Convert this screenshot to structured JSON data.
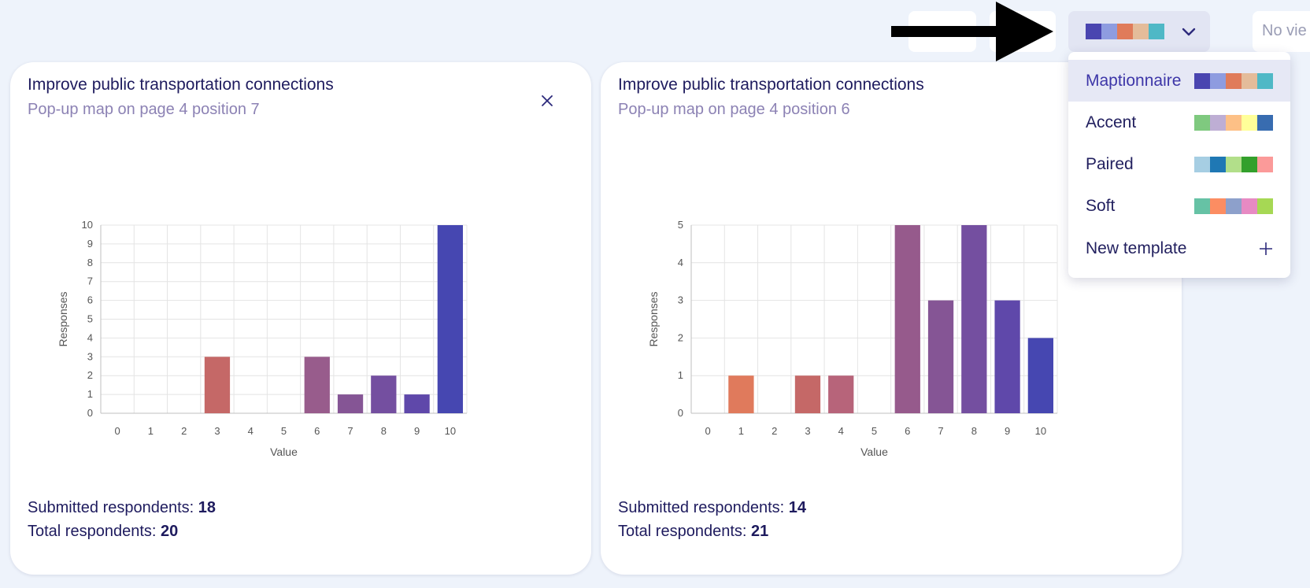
{
  "toolbar": {
    "view_button_label": "No vie",
    "palette_swatches": [
      "#4a45b0",
      "#8e9ce0",
      "#e07b5a",
      "#e4bc9a",
      "#4fb8c6"
    ]
  },
  "menu": {
    "items": [
      {
        "label": "Maptionnaire",
        "swatches": [
          "#4a45b0",
          "#8e9ce0",
          "#e07b5a",
          "#e4bc9a",
          "#4fb8c6"
        ],
        "selected": true
      },
      {
        "label": "Accent",
        "swatches": [
          "#7fc97f",
          "#beaed4",
          "#fdc086",
          "#ffff99",
          "#386cb0"
        ]
      },
      {
        "label": "Paired",
        "swatches": [
          "#a6cee3",
          "#1f78b4",
          "#b2df8a",
          "#33a02c",
          "#fb9a99"
        ]
      },
      {
        "label": "Soft",
        "swatches": [
          "#66c2a5",
          "#fc8d62",
          "#8da0cb",
          "#e78ac3",
          "#a6d854"
        ]
      }
    ],
    "new_template_label": "New template"
  },
  "cards": [
    {
      "title": "Improve public transportation connections",
      "subtitle": "Pop-up map on page 4 position 7",
      "submitted_label": "Submitted respondents: ",
      "submitted": "18",
      "total_label": "Total respondents: ",
      "total": "20"
    },
    {
      "title": "Improve public transportation connections",
      "subtitle": "Pop-up map on page 4 position 6",
      "submitted_label": "Submitted respondents: ",
      "submitted": "14",
      "total_label": "Total respondents: ",
      "total": "21"
    }
  ],
  "chart_data": [
    {
      "type": "bar",
      "categories": [
        "0",
        "1",
        "2",
        "3",
        "4",
        "5",
        "6",
        "7",
        "8",
        "9",
        "10"
      ],
      "values": [
        0,
        0,
        0,
        3,
        0,
        0,
        3,
        1,
        2,
        1,
        10
      ],
      "colors": [
        "#dd7560",
        "#d67062",
        "#cd6b64",
        "#c56867",
        "#b7647a",
        "#a75f87",
        "#985c8c",
        "#855595",
        "#744fa0",
        "#5f48aa",
        "#4647b1"
      ],
      "xlabel": "Value",
      "ylabel": "Responses",
      "ylim": [
        0,
        10
      ],
      "yticks": [
        0,
        1,
        2,
        3,
        4,
        5,
        6,
        7,
        8,
        9,
        10
      ],
      "grid": true
    },
    {
      "type": "bar",
      "categories": [
        "0",
        "1",
        "2",
        "3",
        "4",
        "5",
        "6",
        "7",
        "8",
        "9",
        "10"
      ],
      "values": [
        0,
        1,
        0,
        1,
        1,
        0,
        5,
        3,
        5,
        3,
        2
      ],
      "colors": [
        "#dd7560",
        "#e07a5c",
        "#cd6b64",
        "#c56867",
        "#b7647a",
        "#a75f87",
        "#965a8c",
        "#855595",
        "#744fa0",
        "#5f48aa",
        "#4647b1"
      ],
      "xlabel": "Value",
      "ylabel": "Responses",
      "ylim": [
        0,
        5
      ],
      "yticks": [
        0,
        1,
        2,
        3,
        4,
        5
      ],
      "grid": true
    }
  ]
}
